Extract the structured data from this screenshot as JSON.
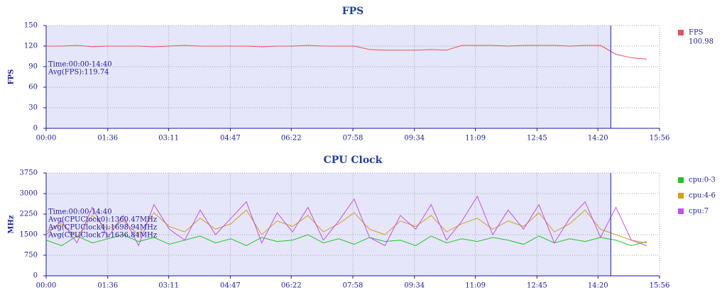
{
  "chart_data": [
    {
      "type": "line",
      "title": "FPS",
      "y_label": "FPS",
      "grid": true,
      "cursor_x": 880,
      "shade": "#e6e6fa",
      "annotations": [
        "Time:00:00-14:40",
        "Avg(FPS):119.74"
      ],
      "legend_value": "100.98",
      "xlim": [
        0,
        956
      ],
      "xticks": [
        {
          "value": 0,
          "label": "00:00"
        },
        {
          "value": 96,
          "label": "01:36"
        },
        {
          "value": 191,
          "label": "03:11"
        },
        {
          "value": 287,
          "label": "04:47"
        },
        {
          "value": 382,
          "label": "06:22"
        },
        {
          "value": 478,
          "label": "07:58"
        },
        {
          "value": 574,
          "label": "09:34"
        },
        {
          "value": 669,
          "label": "11:09"
        },
        {
          "value": 765,
          "label": "12:45"
        },
        {
          "value": 860,
          "label": "14:20"
        },
        {
          "value": 956,
          "label": "15:56"
        }
      ],
      "ylim": [
        0,
        150
      ],
      "yticks": [
        0,
        30,
        60,
        90,
        120,
        150
      ],
      "x": [
        0,
        24,
        48,
        72,
        96,
        120,
        144,
        168,
        192,
        216,
        240,
        264,
        288,
        312,
        336,
        360,
        384,
        408,
        432,
        456,
        480,
        504,
        528,
        552,
        576,
        600,
        624,
        648,
        672,
        696,
        720,
        744,
        768,
        792,
        816,
        840,
        864,
        888,
        912,
        936
      ],
      "series": [
        {
          "name": "FPS",
          "color": "#e8505b",
          "values": [
            120,
            120,
            121,
            119,
            120,
            120,
            120,
            119,
            120,
            121,
            120,
            120,
            120,
            120,
            119,
            120,
            120,
            121,
            120,
            120,
            120,
            115,
            114,
            114,
            114,
            115,
            114,
            121,
            121,
            121,
            120,
            121,
            121,
            121,
            120,
            121,
            121,
            108,
            103,
            101
          ]
        }
      ]
    },
    {
      "type": "line",
      "title": "CPU Clock",
      "y_label": "MHz",
      "grid": true,
      "cursor_x": 880,
      "shade": "#e6e6fa",
      "annotations": [
        "Time:00:00-14:40",
        "Avg(CPUClock0):1360.47MHz",
        "Avg(CPUClock4):1698.94MHz",
        "Avg(CPUClock7):1636.84MHz"
      ],
      "xlim": [
        0,
        956
      ],
      "xticks": [
        {
          "value": 0,
          "label": "00:00"
        },
        {
          "value": 96,
          "label": "01:36"
        },
        {
          "value": 191,
          "label": "03:11"
        },
        {
          "value": 287,
          "label": "04:47"
        },
        {
          "value": 382,
          "label": "06:22"
        },
        {
          "value": 478,
          "label": "07:58"
        },
        {
          "value": 574,
          "label": "09:34"
        },
        {
          "value": 669,
          "label": "11:09"
        },
        {
          "value": 765,
          "label": "12:45"
        },
        {
          "value": 860,
          "label": "14:20"
        },
        {
          "value": 956,
          "label": "15:56"
        }
      ],
      "ylim": [
        0,
        3750
      ],
      "yticks": [
        0,
        750,
        1500,
        2250,
        3000,
        3750
      ],
      "x": [
        0,
        24,
        48,
        72,
        96,
        120,
        144,
        168,
        192,
        216,
        240,
        264,
        288,
        312,
        336,
        360,
        384,
        408,
        432,
        456,
        480,
        504,
        528,
        552,
        576,
        600,
        624,
        648,
        672,
        696,
        720,
        744,
        768,
        792,
        816,
        840,
        864,
        888,
        912,
        936
      ],
      "series": [
        {
          "name": "cpu:0-3",
          "color": "#22c422",
          "values": [
            1300,
            1100,
            1450,
            1200,
            1350,
            1500,
            1250,
            1400,
            1150,
            1300,
            1450,
            1200,
            1350,
            1100,
            1400,
            1250,
            1300,
            1500,
            1200,
            1350,
            1150,
            1400,
            1250,
            1300,
            1100,
            1450,
            1200,
            1350,
            1250,
            1400,
            1300,
            1150,
            1450,
            1200,
            1350,
            1250,
            1400,
            1300,
            1100,
            1250
          ]
        },
        {
          "name": "cpu:4-6",
          "color": "#d4a017",
          "values": [
            1600,
            1900,
            1400,
            2200,
            1700,
            2000,
            1500,
            2300,
            1800,
            1600,
            2100,
            1700,
            1900,
            2400,
            1500,
            2000,
            1800,
            2200,
            1600,
            1900,
            2300,
            1700,
            1500,
            2000,
            1800,
            2200,
            1600,
            1900,
            2100,
            1700,
            2000,
            1800,
            2300,
            1600,
            1900,
            2400,
            1700,
            1500,
            1300,
            1200
          ]
        },
        {
          "name": "cpu:7",
          "color": "#c050f0",
          "values": [
            1500,
            2000,
            1200,
            2500,
            1400,
            2200,
            1100,
            2600,
            1700,
            1300,
            2400,
            1500,
            2100,
            2700,
            1200,
            2300,
            1600,
            2500,
            1300,
            2000,
            2800,
            1400,
            1100,
            2200,
            1700,
            2600,
            1300,
            2000,
            2900,
            1500,
            2400,
            1700,
            2600,
            1200,
            2100,
            2700,
            1400,
            2500,
            1300,
            1100
          ]
        }
      ]
    }
  ]
}
